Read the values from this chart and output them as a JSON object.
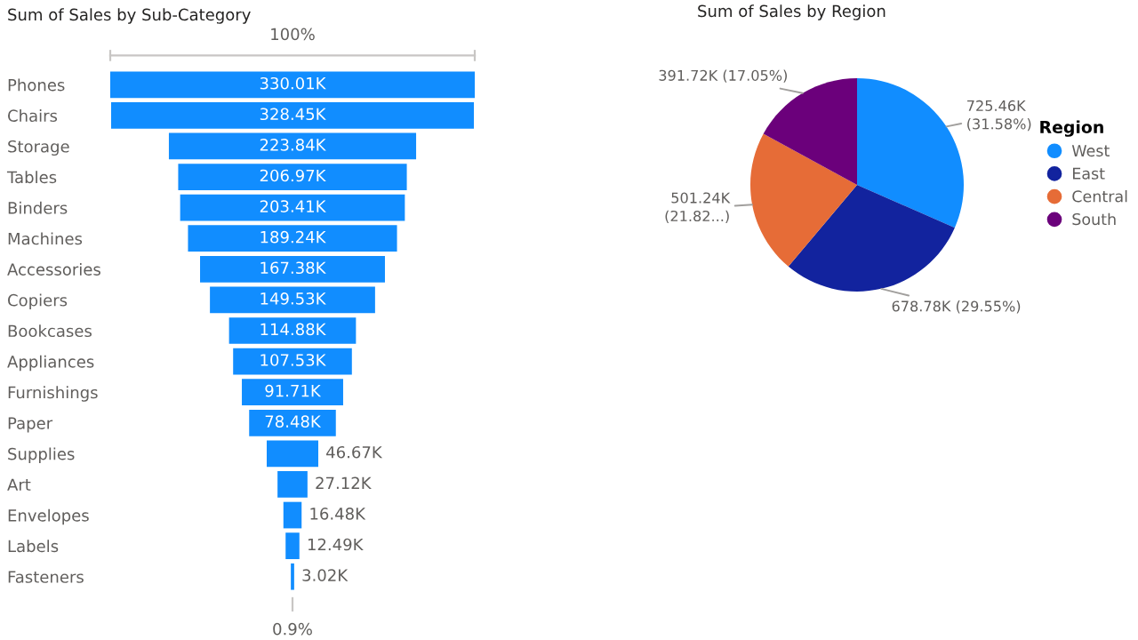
{
  "chart_data": [
    {
      "type": "other",
      "title": "Sum of Sales by Sub-Category",
      "categories": [
        "Phones",
        "Chairs",
        "Storage",
        "Tables",
        "Binders",
        "Machines",
        "Accessories",
        "Copiers",
        "Bookcases",
        "Appliances",
        "Furnishings",
        "Paper",
        "Supplies",
        "Art",
        "Envelopes",
        "Labels",
        "Fasteners"
      ],
      "values": [
        330.01,
        328.45,
        223.84,
        206.97,
        203.41,
        189.24,
        167.38,
        149.53,
        114.88,
        107.53,
        91.71,
        78.48,
        46.67,
        27.12,
        16.48,
        12.49,
        3.02
      ],
      "value_labels": [
        "330.01K",
        "328.45K",
        "223.84K",
        "206.97K",
        "203.41K",
        "189.24K",
        "167.38K",
        "149.53K",
        "114.88K",
        "107.53K",
        "91.71K",
        "78.48K",
        "46.67K",
        "27.12K",
        "16.48K",
        "12.49K",
        "3.02K"
      ],
      "color": "#118dff",
      "annotations": [
        "100%",
        "0.9%"
      ]
    },
    {
      "type": "pie",
      "title": "Sum of Sales by Region",
      "categories": [
        "West",
        "East",
        "Central",
        "South"
      ],
      "values": [
        31.58,
        29.55,
        21.82,
        17.05
      ],
      "colors": [
        "#118dff",
        "#12239e",
        "#e66c37",
        "#6b007b"
      ],
      "value_labels": [
        "725.46K\n(31.58%)",
        "678.78K (29.55%)",
        "501.24K\n(21.82...)",
        "391.72K (17.05%)"
      ],
      "legend": "right",
      "legend_title": "Region"
    }
  ]
}
